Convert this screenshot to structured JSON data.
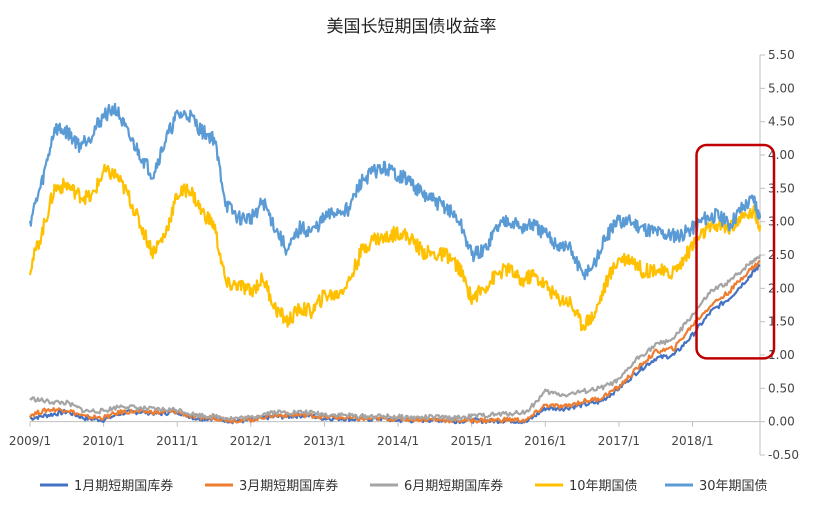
{
  "chart_data": {
    "type": "line",
    "title": "美国长短期国债收益率",
    "x_ticks": [
      "2009/1",
      "2010/1",
      "2011/1",
      "2012/1",
      "2013/1",
      "2014/1",
      "2015/1",
      "2016/1",
      "2017/1",
      "2018/1"
    ],
    "x_range": [
      "2009/1",
      "2018/12"
    ],
    "y_ticks": [
      "5.50",
      "5.00",
      "4.50",
      "4.00",
      "3.50",
      "3.00",
      "2.50",
      "2.00",
      "1.50",
      "1.00",
      "0.50",
      "0.00",
      "-0.50"
    ],
    "ylim": [
      -0.5,
      5.5
    ],
    "y_axis_position": "right",
    "grid": false,
    "legend_position": "bottom",
    "annotation": {
      "type": "rounded-rectangle",
      "color": "#c00000",
      "x_range": [
        "2018/1",
        "2018/12"
      ],
      "y_range": [
        0.95,
        4.15
      ]
    },
    "series": [
      {
        "name": "1月期短期国库券",
        "color": "#4472c4",
        "x": [
          "2009/1",
          "2009/4",
          "2009/7",
          "2009/10",
          "2010/1",
          "2010/4",
          "2010/7",
          "2010/10",
          "2011/1",
          "2011/4",
          "2011/7",
          "2011/10",
          "2012/1",
          "2012/4",
          "2012/7",
          "2012/10",
          "2013/1",
          "2013/4",
          "2013/7",
          "2013/10",
          "2014/1",
          "2014/4",
          "2014/7",
          "2014/10",
          "2015/1",
          "2015/4",
          "2015/7",
          "2015/10",
          "2016/1",
          "2016/4",
          "2016/7",
          "2016/10",
          "2017/1",
          "2017/4",
          "2017/7",
          "2017/10",
          "2018/1",
          "2018/4",
          "2018/7",
          "2018/10",
          "2018/12"
        ],
        "y": [
          0.05,
          0.1,
          0.15,
          0.05,
          0.03,
          0.13,
          0.15,
          0.12,
          0.15,
          0.05,
          0.05,
          0.01,
          0.02,
          0.07,
          0.08,
          0.1,
          0.05,
          0.05,
          0.03,
          0.05,
          0.02,
          0.02,
          0.03,
          0.01,
          0.02,
          0.01,
          0.02,
          0.0,
          0.2,
          0.2,
          0.25,
          0.3,
          0.5,
          0.75,
          0.95,
          1.0,
          1.3,
          1.65,
          1.85,
          2.15,
          2.35
        ]
      },
      {
        "name": "3月期短期国库券",
        "color": "#ed7d31",
        "x": [
          "2009/1",
          "2009/4",
          "2009/7",
          "2009/10",
          "2010/1",
          "2010/4",
          "2010/7",
          "2010/10",
          "2011/1",
          "2011/4",
          "2011/7",
          "2011/10",
          "2012/1",
          "2012/4",
          "2012/7",
          "2012/10",
          "2013/1",
          "2013/4",
          "2013/7",
          "2013/10",
          "2014/1",
          "2014/4",
          "2014/7",
          "2014/10",
          "2015/1",
          "2015/4",
          "2015/7",
          "2015/10",
          "2016/1",
          "2016/4",
          "2016/7",
          "2016/10",
          "2017/1",
          "2017/4",
          "2017/7",
          "2017/10",
          "2018/1",
          "2018/4",
          "2018/7",
          "2018/10",
          "2018/12"
        ],
        "y": [
          0.1,
          0.18,
          0.18,
          0.07,
          0.06,
          0.15,
          0.15,
          0.14,
          0.15,
          0.06,
          0.06,
          0.02,
          0.03,
          0.09,
          0.1,
          0.1,
          0.07,
          0.06,
          0.04,
          0.05,
          0.04,
          0.04,
          0.03,
          0.02,
          0.02,
          0.02,
          0.03,
          0.02,
          0.25,
          0.22,
          0.3,
          0.35,
          0.52,
          0.8,
          1.05,
          1.1,
          1.45,
          1.75,
          1.95,
          2.25,
          2.4
        ]
      },
      {
        "name": "6月期短期国库券",
        "color": "#a5a5a5",
        "x": [
          "2009/1",
          "2009/4",
          "2009/7",
          "2009/10",
          "2010/1",
          "2010/4",
          "2010/7",
          "2010/10",
          "2011/1",
          "2011/4",
          "2011/7",
          "2011/10",
          "2012/1",
          "2012/4",
          "2012/7",
          "2012/10",
          "2013/1",
          "2013/4",
          "2013/7",
          "2013/10",
          "2014/1",
          "2014/4",
          "2014/7",
          "2014/10",
          "2015/1",
          "2015/4",
          "2015/7",
          "2015/10",
          "2016/1",
          "2016/4",
          "2016/7",
          "2016/10",
          "2017/1",
          "2017/4",
          "2017/7",
          "2017/10",
          "2018/1",
          "2018/4",
          "2018/7",
          "2018/10",
          "2018/12"
        ],
        "y": [
          0.35,
          0.3,
          0.28,
          0.16,
          0.16,
          0.24,
          0.2,
          0.18,
          0.18,
          0.1,
          0.08,
          0.05,
          0.06,
          0.14,
          0.14,
          0.14,
          0.11,
          0.1,
          0.08,
          0.08,
          0.07,
          0.06,
          0.07,
          0.05,
          0.08,
          0.1,
          0.12,
          0.15,
          0.45,
          0.4,
          0.45,
          0.5,
          0.62,
          0.95,
          1.15,
          1.25,
          1.6,
          1.95,
          2.1,
          2.35,
          2.5
        ]
      },
      {
        "name": "10年期国债",
        "color": "#ffc000",
        "x": [
          "2009/1",
          "2009/3",
          "2009/5",
          "2009/7",
          "2009/9",
          "2009/11",
          "2010/1",
          "2010/3",
          "2010/5",
          "2010/7",
          "2010/9",
          "2010/11",
          "2011/1",
          "2011/3",
          "2011/5",
          "2011/7",
          "2011/9",
          "2011/11",
          "2012/1",
          "2012/3",
          "2012/5",
          "2012/7",
          "2012/9",
          "2012/11",
          "2013/1",
          "2013/3",
          "2013/5",
          "2013/7",
          "2013/9",
          "2013/11",
          "2014/1",
          "2014/3",
          "2014/5",
          "2014/7",
          "2014/9",
          "2014/11",
          "2015/1",
          "2015/3",
          "2015/5",
          "2015/7",
          "2015/9",
          "2015/11",
          "2016/1",
          "2016/3",
          "2016/5",
          "2016/7",
          "2016/9",
          "2016/11",
          "2017/1",
          "2017/3",
          "2017/5",
          "2017/7",
          "2017/9",
          "2017/11",
          "2018/1",
          "2018/3",
          "2018/5",
          "2018/7",
          "2018/9",
          "2018/11",
          "2018/12"
        ],
        "y": [
          2.3,
          2.85,
          3.5,
          3.55,
          3.4,
          3.35,
          3.75,
          3.7,
          3.4,
          2.95,
          2.55,
          2.8,
          3.4,
          3.5,
          3.15,
          2.95,
          2.05,
          2.05,
          1.95,
          2.15,
          1.7,
          1.5,
          1.7,
          1.65,
          1.9,
          1.9,
          2.1,
          2.55,
          2.75,
          2.75,
          2.85,
          2.75,
          2.55,
          2.5,
          2.5,
          2.3,
          1.85,
          2.0,
          2.2,
          2.3,
          2.1,
          2.2,
          2.05,
          1.85,
          1.8,
          1.45,
          1.6,
          2.1,
          2.45,
          2.45,
          2.25,
          2.3,
          2.2,
          2.35,
          2.65,
          2.85,
          2.95,
          2.9,
          3.05,
          3.15,
          2.95
        ]
      },
      {
        "name": "30年期国债",
        "color": "#5b9bd5",
        "x": [
          "2009/1",
          "2009/3",
          "2009/5",
          "2009/7",
          "2009/9",
          "2009/11",
          "2010/1",
          "2010/3",
          "2010/5",
          "2010/7",
          "2010/9",
          "2010/11",
          "2011/1",
          "2011/3",
          "2011/5",
          "2011/7",
          "2011/9",
          "2011/11",
          "2012/1",
          "2012/3",
          "2012/5",
          "2012/7",
          "2012/9",
          "2012/11",
          "2013/1",
          "2013/3",
          "2013/5",
          "2013/7",
          "2013/9",
          "2013/11",
          "2014/1",
          "2014/3",
          "2014/5",
          "2014/7",
          "2014/9",
          "2014/11",
          "2015/1",
          "2015/3",
          "2015/5",
          "2015/7",
          "2015/9",
          "2015/11",
          "2016/1",
          "2016/3",
          "2016/5",
          "2016/7",
          "2016/9",
          "2016/11",
          "2017/1",
          "2017/3",
          "2017/5",
          "2017/7",
          "2017/9",
          "2017/11",
          "2018/1",
          "2018/3",
          "2018/5",
          "2018/7",
          "2018/9",
          "2018/11",
          "2018/12"
        ],
        "y": [
          3.0,
          3.6,
          4.4,
          4.35,
          4.15,
          4.3,
          4.6,
          4.7,
          4.3,
          4.0,
          3.7,
          4.2,
          4.6,
          4.6,
          4.35,
          4.25,
          3.25,
          3.05,
          3.05,
          3.3,
          2.9,
          2.55,
          2.9,
          2.85,
          3.05,
          3.15,
          3.2,
          3.6,
          3.75,
          3.8,
          3.7,
          3.6,
          3.4,
          3.3,
          3.2,
          3.0,
          2.5,
          2.55,
          2.9,
          3.05,
          2.9,
          2.95,
          2.8,
          2.65,
          2.6,
          2.2,
          2.35,
          2.8,
          3.0,
          3.0,
          2.9,
          2.85,
          2.8,
          2.8,
          2.9,
          3.05,
          3.1,
          2.95,
          3.2,
          3.35,
          3.05
        ]
      }
    ]
  }
}
